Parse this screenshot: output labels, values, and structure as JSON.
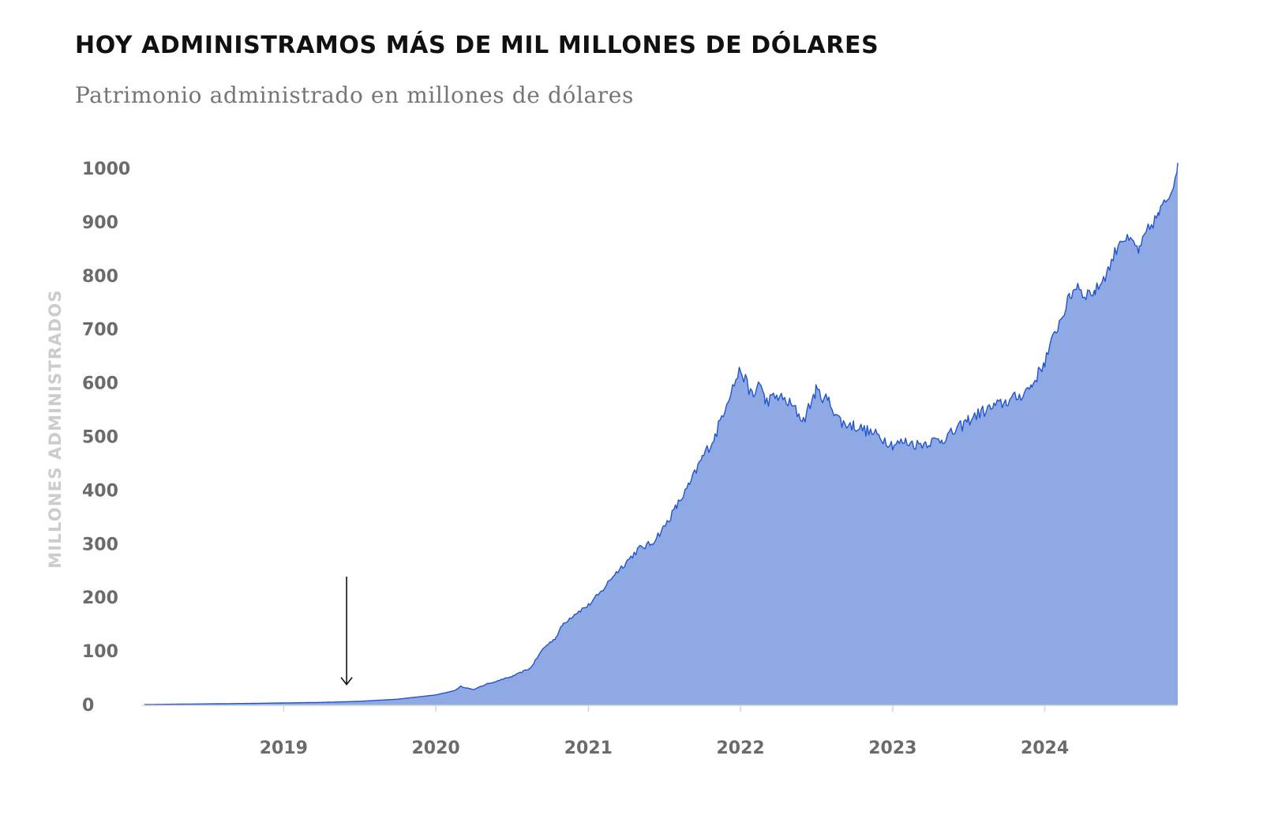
{
  "header": {
    "title": "HOY ADMINISTRAMOS MÁS DE MIL MILLONES DE DÓLARES",
    "subtitle": "Patrimonio administrado en millones de dólares"
  },
  "colors": {
    "area_fill": "#8fa9e5",
    "line": "#2255cc",
    "axis": "#d4d4d4",
    "tick_text": "#6b6b6b",
    "axis_title": "#cccccc",
    "arrow": "#111111"
  },
  "chart_data": {
    "type": "area",
    "title": "HOY ADMINISTRAMOS MÁS DE MIL MILLONES DE DÓLARES",
    "subtitle": "Patrimonio administrado en millones de dólares",
    "xlabel": "",
    "ylabel": "MILLONES ADMINISTRADOS",
    "xlim": [
      "2018-02-01",
      "2024-11-15"
    ],
    "ylim": [
      0,
      1000
    ],
    "y_ticks": [
      0,
      100,
      200,
      300,
      400,
      500,
      600,
      700,
      800,
      900,
      1000
    ],
    "x_tick_labels": [
      "2019",
      "2020",
      "2021",
      "2022",
      "2023",
      "2024"
    ],
    "grid": false,
    "legend": "none",
    "annotation": {
      "type": "arrow",
      "date": "2019-06-01",
      "value": 5
    },
    "series": [
      {
        "points": [
          [
            "2018-02-01",
            0
          ],
          [
            "2018-06-01",
            1
          ],
          [
            "2018-10-01",
            2
          ],
          [
            "2019-01-01",
            3
          ],
          [
            "2019-04-01",
            4
          ],
          [
            "2019-07-01",
            6
          ],
          [
            "2019-10-01",
            10
          ],
          [
            "2020-01-01",
            18
          ],
          [
            "2020-02-15",
            26
          ],
          [
            "2020-03-01",
            34
          ],
          [
            "2020-03-20",
            30
          ],
          [
            "2020-04-01",
            28
          ],
          [
            "2020-05-01",
            38
          ],
          [
            "2020-07-01",
            52
          ],
          [
            "2020-08-15",
            68
          ],
          [
            "2020-09-15",
            105
          ],
          [
            "2020-10-15",
            125
          ],
          [
            "2020-11-01",
            150
          ],
          [
            "2020-12-01",
            170
          ],
          [
            "2021-01-01",
            185
          ],
          [
            "2021-02-01",
            210
          ],
          [
            "2021-03-01",
            240
          ],
          [
            "2021-04-01",
            265
          ],
          [
            "2021-05-01",
            290
          ],
          [
            "2021-06-01",
            300
          ],
          [
            "2021-07-01",
            330
          ],
          [
            "2021-08-01",
            370
          ],
          [
            "2021-09-01",
            410
          ],
          [
            "2021-10-01",
            460
          ],
          [
            "2021-11-01",
            500
          ],
          [
            "2021-12-01",
            570
          ],
          [
            "2022-01-01",
            625
          ],
          [
            "2022-02-01",
            570
          ],
          [
            "2022-02-15",
            605
          ],
          [
            "2022-03-01",
            565
          ],
          [
            "2022-04-01",
            575
          ],
          [
            "2022-05-01",
            560
          ],
          [
            "2022-06-01",
            530
          ],
          [
            "2022-07-01",
            585
          ],
          [
            "2022-08-01",
            565
          ],
          [
            "2022-09-01",
            525
          ],
          [
            "2022-10-01",
            520
          ],
          [
            "2022-11-01",
            510
          ],
          [
            "2022-12-01",
            500
          ],
          [
            "2023-01-01",
            485
          ],
          [
            "2023-02-01",
            490
          ],
          [
            "2023-03-01",
            485
          ],
          [
            "2023-04-01",
            490
          ],
          [
            "2023-05-01",
            495
          ],
          [
            "2023-06-01",
            510
          ],
          [
            "2023-07-01",
            530
          ],
          [
            "2023-08-01",
            545
          ],
          [
            "2023-09-01",
            555
          ],
          [
            "2023-10-01",
            565
          ],
          [
            "2023-11-01",
            575
          ],
          [
            "2023-12-01",
            595
          ],
          [
            "2024-01-01",
            640
          ],
          [
            "2024-02-01",
            705
          ],
          [
            "2024-03-01",
            760
          ],
          [
            "2024-03-20",
            785
          ],
          [
            "2024-04-01",
            765
          ],
          [
            "2024-05-01",
            770
          ],
          [
            "2024-06-01",
            810
          ],
          [
            "2024-07-01",
            870
          ],
          [
            "2024-08-01",
            860
          ],
          [
            "2024-08-15",
            845
          ],
          [
            "2024-09-01",
            880
          ],
          [
            "2024-10-01",
            915
          ],
          [
            "2024-11-01",
            960
          ],
          [
            "2024-11-15",
            1010
          ]
        ]
      }
    ]
  }
}
